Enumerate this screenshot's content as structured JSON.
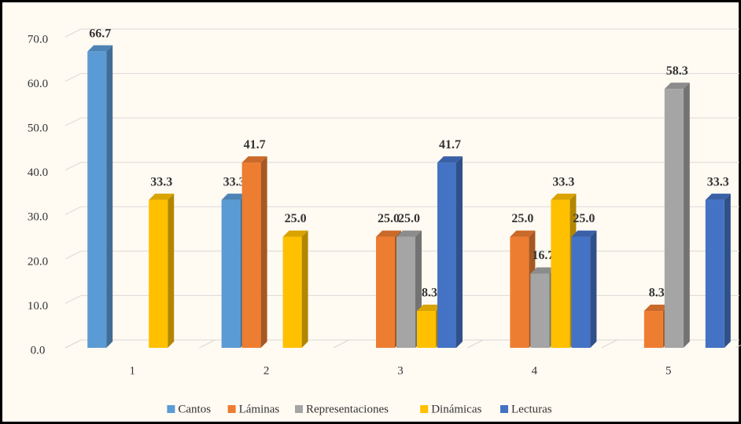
{
  "chart_data": {
    "type": "bar3d",
    "categories": [
      "1",
      "2",
      "3",
      "4",
      "5"
    ],
    "series": [
      {
        "name": "Cantos",
        "color": "#5b9bd5",
        "values": [
          66.7,
          33.3,
          null,
          null,
          null
        ],
        "value_labels": [
          "66.7",
          "33.3",
          null,
          null,
          null
        ]
      },
      {
        "name": "Láminas",
        "color": "#ed7d31",
        "values": [
          null,
          41.7,
          25,
          25,
          8.3
        ],
        "value_labels": [
          null,
          "41.7",
          "25.0",
          "25.0",
          "8.3"
        ]
      },
      {
        "name": "Representaciones",
        "color": "#a5a5a5",
        "values": [
          null,
          null,
          25,
          16.7,
          58.3
        ],
        "value_labels": [
          null,
          null,
          "25.0",
          "16.7",
          "58.3"
        ]
      },
      {
        "name": "Dinámicas",
        "color": "#ffc000",
        "values": [
          33.3,
          25,
          8.3,
          33.3,
          null
        ],
        "value_labels": [
          "33.3",
          "25.0",
          "8.3",
          "33.3",
          null
        ]
      },
      {
        "name": "Lecturas",
        "color": "#4472c4",
        "values": [
          null,
          null,
          41.7,
          25,
          33.3
        ],
        "value_labels": [
          null,
          null,
          "41.7",
          "25.0",
          "33.3"
        ]
      }
    ],
    "ylim": [
      0,
      70
    ],
    "yticks": [
      {
        "value": 0,
        "label": "0.0"
      },
      {
        "value": 10,
        "label": "10.0"
      },
      {
        "value": 20,
        "label": "20.0"
      },
      {
        "value": 30,
        "label": "30.0"
      },
      {
        "value": 40,
        "label": "40.0"
      },
      {
        "value": 50,
        "label": "50.0"
      },
      {
        "value": 60,
        "label": "60.0"
      },
      {
        "value": 70,
        "label": "70.0"
      }
    ],
    "grid": true,
    "legend": "bottom"
  }
}
